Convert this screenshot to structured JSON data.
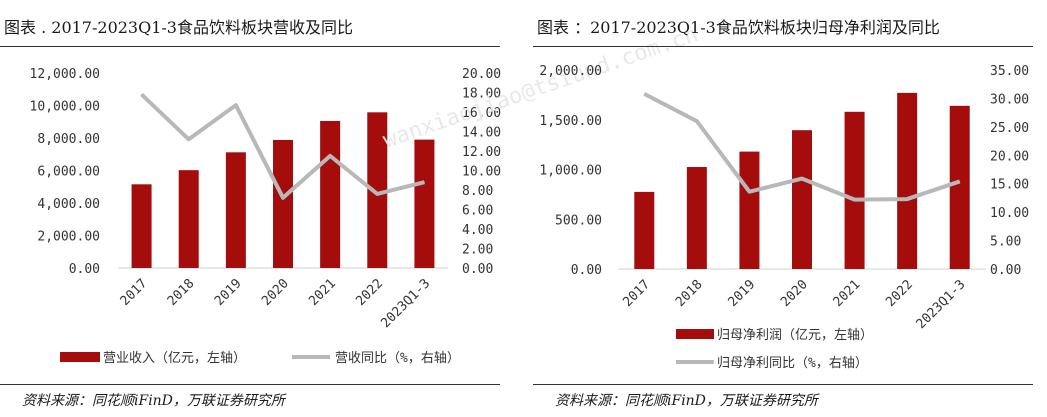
{
  "charts": [
    {
      "title": "图表 . 2017-2023Q1-3食品饮料板块营收及同比",
      "source": "资料来源：同花顺iFinD，万联证券研究所"
    },
    {
      "title": "图表 ：2017-2023Q1-3食品饮料板块归母净利润及同比",
      "source": "资料来源：同花顺iFinD，万联证券研究所"
    }
  ],
  "watermark": "wanxiaojiao@tsiund.com.cn",
  "chart_data": [
    {
      "type": "bar",
      "categories": [
        "2017",
        "2018",
        "2019",
        "2020",
        "2021",
        "2022",
        "2023Q1-3"
      ],
      "series": [
        {
          "name": "营业收入（亿元，左轴）",
          "type": "bar",
          "axis": "left",
          "color": "#a50d0d",
          "values": [
            5150,
            6020,
            7120,
            7880,
            9050,
            9580,
            7900
          ]
        },
        {
          "name": "营收同比（%，右轴）",
          "type": "line",
          "axis": "right",
          "color": "#b8b8b8",
          "values": [
            17.8,
            13.2,
            16.7,
            7.2,
            11.5,
            7.6,
            8.8
          ]
        }
      ],
      "y_left": {
        "min": 0,
        "max": 12000,
        "step": 2000,
        "ticks": [
          "12,000.00",
          "10,000.00",
          "8,000.00",
          "6,000.00",
          "4,000.00",
          "2,000.00",
          "0.00"
        ]
      },
      "y_right": {
        "min": 0,
        "max": 20,
        "step": 2,
        "ticks": [
          "20.00",
          "18.00",
          "16.00",
          "14.00",
          "12.00",
          "10.00",
          "8.00",
          "6.00",
          "4.00",
          "2.00",
          "0.00"
        ]
      },
      "grid": false,
      "legend": "bottom"
    },
    {
      "type": "bar",
      "categories": [
        "2017",
        "2018",
        "2019",
        "2020",
        "2021",
        "2022",
        "2023Q1-3"
      ],
      "series": [
        {
          "name": "归母净利润（亿元，左轴）",
          "type": "bar",
          "axis": "left",
          "color": "#a50d0d",
          "values": [
            775,
            1025,
            1180,
            1395,
            1580,
            1770,
            1640
          ]
        },
        {
          "name": "归母净利同比（%，右轴）",
          "type": "line",
          "axis": "right",
          "color": "#b8b8b8",
          "values": [
            30.8,
            26.0,
            13.6,
            15.9,
            12.2,
            12.3,
            15.4
          ]
        }
      ],
      "y_left": {
        "min": 0,
        "max": 2000,
        "step": 500,
        "ticks": [
          "2,000.00",
          "1,500.00",
          "1,000.00",
          "500.00",
          "0.00"
        ]
      },
      "y_right": {
        "min": 0,
        "max": 35,
        "step": 5,
        "ticks": [
          "35.00",
          "30.00",
          "25.00",
          "20.00",
          "15.00",
          "10.00",
          "5.00",
          "0.00"
        ]
      },
      "grid": false,
      "legend": "bottom"
    }
  ]
}
